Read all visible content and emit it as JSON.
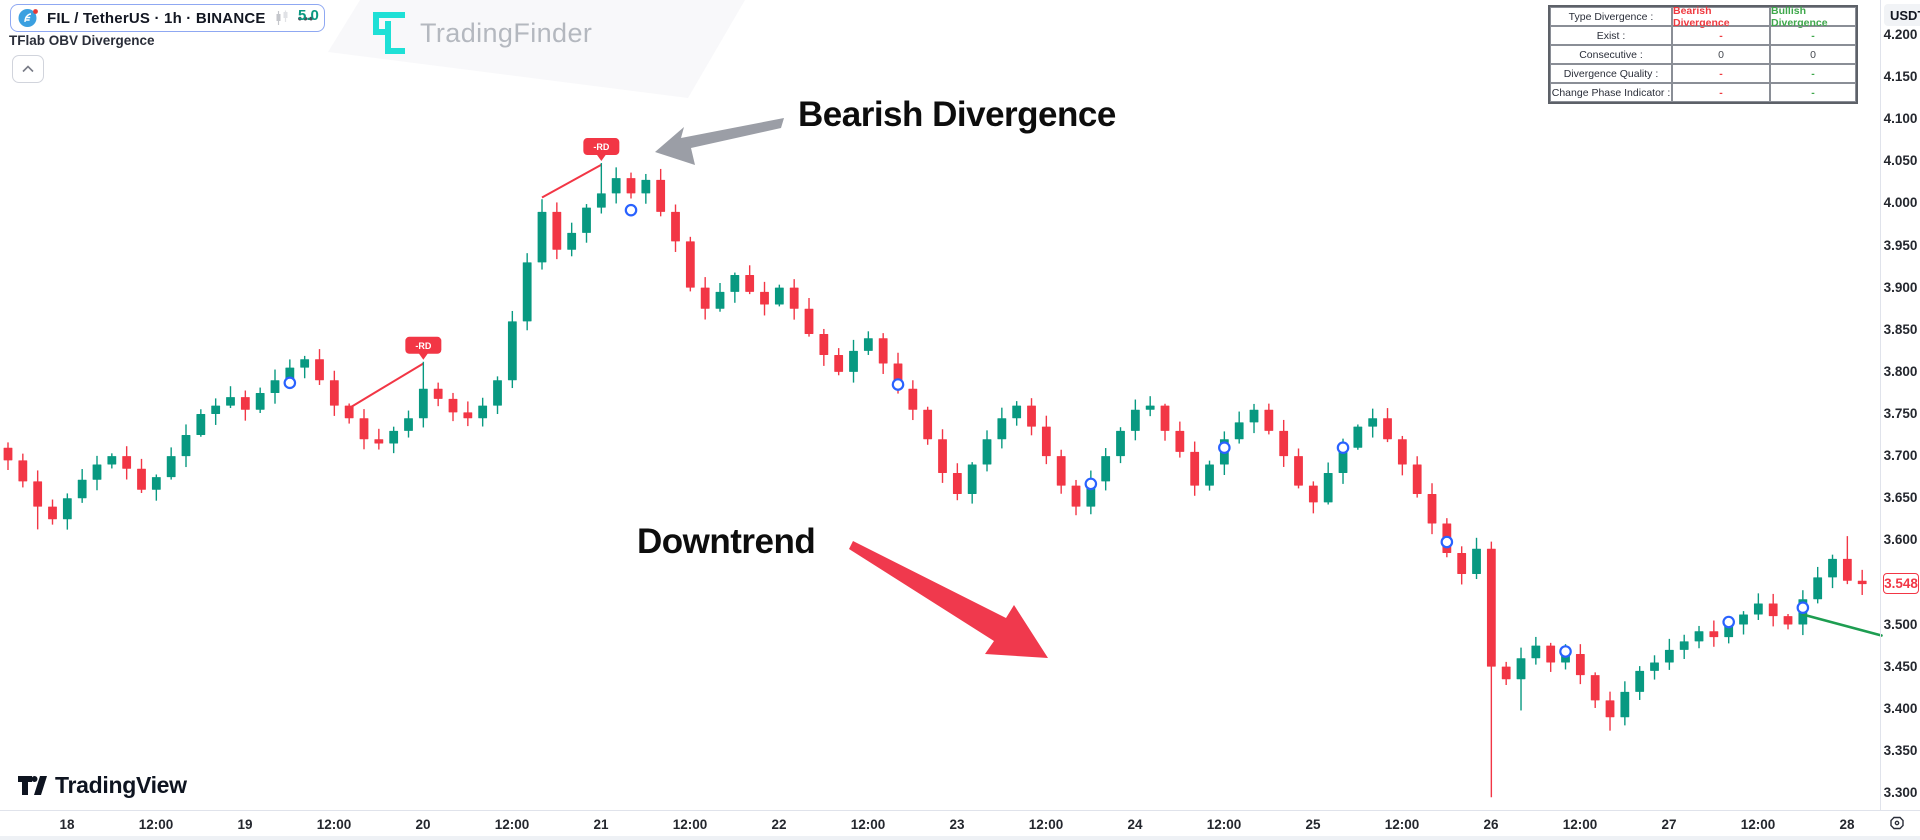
{
  "header": {
    "symbol_pill": {
      "full": "FIL / TetherUS · 1h · BINANCE",
      "more_label": "•••"
    },
    "value_snippet": "5.0",
    "indicator_name": "TFlab OBV Divergence"
  },
  "watermark": {
    "brand": "TradingFinder"
  },
  "annotations": {
    "bearish_label": "Bearish Divergence",
    "downtrend_label": "Downtrend"
  },
  "divergence_table": {
    "rows": [
      {
        "label": "Type Divergence :",
        "bearish": "Bearish Divergence",
        "bullish": "Bullish Divergence",
        "neutral": false
      },
      {
        "label": "Exist :",
        "bearish": "-",
        "bullish": "-",
        "neutral": false
      },
      {
        "label": "Consecutive :",
        "bearish": "0",
        "bullish": "0",
        "neutral": true
      },
      {
        "label": "Divergence Quality :",
        "bearish": "-",
        "bullish": "-",
        "neutral": false
      },
      {
        "label": "Change Phase Indicator :",
        "bearish": "-",
        "bullish": "-",
        "neutral": false
      }
    ]
  },
  "price_axis": {
    "currency": "USDT",
    "last_price": "3.548",
    "ticks": [
      {
        "p": 4.2,
        "text": "4.200"
      },
      {
        "p": 4.15,
        "text": "4.150"
      },
      {
        "p": 4.1,
        "text": "4.100"
      },
      {
        "p": 4.05,
        "text": "4.050"
      },
      {
        "p": 4.0,
        "text": "4.000"
      },
      {
        "p": 3.95,
        "text": "3.950"
      },
      {
        "p": 3.9,
        "text": "3.900"
      },
      {
        "p": 3.85,
        "text": "3.850"
      },
      {
        "p": 3.8,
        "text": "3.800"
      },
      {
        "p": 3.75,
        "text": "3.750"
      },
      {
        "p": 3.7,
        "text": "3.700"
      },
      {
        "p": 3.65,
        "text": "3.650"
      },
      {
        "p": 3.6,
        "text": "3.600"
      },
      {
        "p": 3.5,
        "text": "3.500"
      },
      {
        "p": 3.45,
        "text": "3.450"
      },
      {
        "p": 3.4,
        "text": "3.400"
      },
      {
        "p": 3.35,
        "text": "3.350"
      },
      {
        "p": 3.3,
        "text": "3.300"
      }
    ]
  },
  "time_axis": {
    "labels": [
      {
        "d": 18.0,
        "text": "18"
      },
      {
        "d": 18.5,
        "text": "12:00"
      },
      {
        "d": 19.0,
        "text": "19"
      },
      {
        "d": 19.5,
        "text": "12:00"
      },
      {
        "d": 20.0,
        "text": "20"
      },
      {
        "d": 20.5,
        "text": "12:00"
      },
      {
        "d": 21.0,
        "text": "21"
      },
      {
        "d": 21.5,
        "text": "12:00"
      },
      {
        "d": 22.0,
        "text": "22"
      },
      {
        "d": 22.5,
        "text": "12:00"
      },
      {
        "d": 23.0,
        "text": "23"
      },
      {
        "d": 23.5,
        "text": "12:00"
      },
      {
        "d": 24.0,
        "text": "24"
      },
      {
        "d": 24.5,
        "text": "12:00"
      },
      {
        "d": 25.0,
        "text": "25"
      },
      {
        "d": 25.5,
        "text": "12:00"
      },
      {
        "d": 26.0,
        "text": "26"
      },
      {
        "d": 26.5,
        "text": "12:00"
      },
      {
        "d": 27.0,
        "text": "27"
      },
      {
        "d": 27.5,
        "text": "12:00"
      },
      {
        "d": 28.0,
        "text": "28"
      }
    ]
  },
  "footer": {
    "brand": "TradingView"
  },
  "chart_data": {
    "type": "candlestick",
    "symbol": "FIL / TetherUS",
    "interval": "1h",
    "exchange": "BINANCE",
    "ylim": [
      3.3,
      4.2
    ],
    "xlim_days": [
      17.67,
      28.17
    ],
    "candle_step_days": 0.0833,
    "start_day": 17.667,
    "first_open": 3.71,
    "closes": [
      3.695,
      3.67,
      3.64,
      3.625,
      3.65,
      3.672,
      3.69,
      3.7,
      3.685,
      3.66,
      3.675,
      3.7,
      3.725,
      3.75,
      3.76,
      3.77,
      3.755,
      3.775,
      3.79,
      3.805,
      3.815,
      3.79,
      3.76,
      3.745,
      3.72,
      3.715,
      3.73,
      3.745,
      3.78,
      3.768,
      3.752,
      3.745,
      3.76,
      3.79,
      3.86,
      3.93,
      3.99,
      3.945,
      3.965,
      3.995,
      4.012,
      4.03,
      4.012,
      4.028,
      3.99,
      3.955,
      3.9,
      3.875,
      3.895,
      3.915,
      3.895,
      3.88,
      3.9,
      3.875,
      3.845,
      3.82,
      3.8,
      3.825,
      3.84,
      3.81,
      3.78,
      3.755,
      3.72,
      3.68,
      3.655,
      3.69,
      3.72,
      3.745,
      3.76,
      3.735,
      3.7,
      3.665,
      3.64,
      3.67,
      3.7,
      3.73,
      3.755,
      3.76,
      3.73,
      3.705,
      3.665,
      3.69,
      3.72,
      3.74,
      3.755,
      3.73,
      3.7,
      3.665,
      3.645,
      3.68,
      3.71,
      3.735,
      3.745,
      3.72,
      3.69,
      3.655,
      3.62,
      3.585,
      3.56,
      3.59,
      3.45,
      3.435,
      3.46,
      3.475,
      3.455,
      3.465,
      3.44,
      3.41,
      3.39,
      3.42,
      3.445,
      3.455,
      3.47,
      3.48,
      3.492,
      3.485,
      3.5,
      3.512,
      3.525,
      3.51,
      3.5,
      3.53,
      3.556,
      3.578,
      3.552,
      3.548
    ],
    "high_overrides": {
      "28": 3.812,
      "36": 4.005,
      "40": 4.048,
      "43": 4.035,
      "124": 3.605
    },
    "low_overrides": {
      "2": 3.613,
      "100": 3.295,
      "102": 3.398,
      "108": 3.374
    },
    "up_color": "#089981",
    "down_color": "#F23645",
    "divergence_flags": [
      {
        "i": 28,
        "price": 3.812,
        "label": "-RD"
      },
      {
        "i": 40,
        "price": 4.048,
        "label": "-RD"
      }
    ],
    "divergence_lines": [
      {
        "i1": 23,
        "p1": 3.757,
        "i2": 28,
        "p2": 3.81,
        "color": "#F23645"
      },
      {
        "i1": 36,
        "p1": 4.007,
        "i2": 40,
        "p2": 4.046,
        "color": "#F23645"
      }
    ],
    "trend_line": {
      "i1": 121,
      "p1": 3.512,
      "i2": 126.3,
      "p2": 3.487,
      "color": "#1d9d51"
    },
    "obv_markers": [
      {
        "i": 19,
        "price": 3.787
      },
      {
        "i": 42,
        "price": 3.992
      },
      {
        "i": 60,
        "price": 3.785
      },
      {
        "i": 73,
        "price": 3.667
      },
      {
        "i": 82,
        "price": 3.71
      },
      {
        "i": 90,
        "price": 3.71
      },
      {
        "i": 97,
        "price": 3.598
      },
      {
        "i": 105,
        "price": 3.468
      },
      {
        "i": 116,
        "price": 3.503
      },
      {
        "i": 121,
        "price": 3.52
      }
    ],
    "marker_color": "#2962FF"
  }
}
